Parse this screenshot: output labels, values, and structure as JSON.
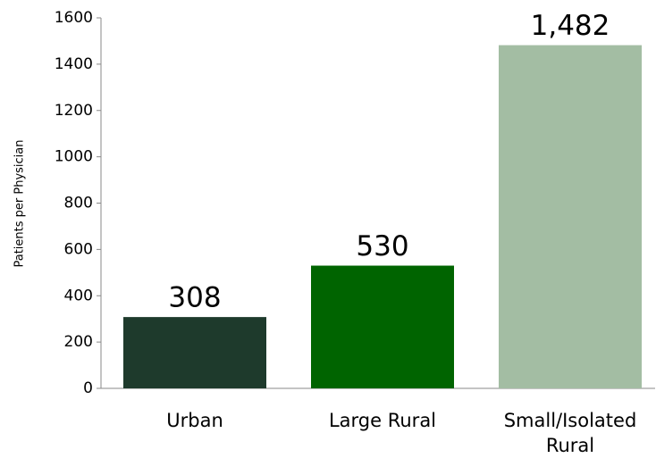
{
  "chart_data": {
    "type": "bar",
    "y_label": "Patients per Physician",
    "categories": [
      "Urban",
      "Large Rural",
      "Small/Isolated Rural"
    ],
    "values": [
      308,
      530,
      1482
    ],
    "value_labels": [
      "308",
      "530",
      "1,482"
    ],
    "colors": [
      "#1e3a2c",
      "#006400",
      "#a3bda3"
    ],
    "ylim": [
      0,
      1600
    ],
    "yticks": [
      0,
      200,
      400,
      600,
      800,
      1000,
      1200,
      1400,
      1600
    ],
    "grid": false
  }
}
